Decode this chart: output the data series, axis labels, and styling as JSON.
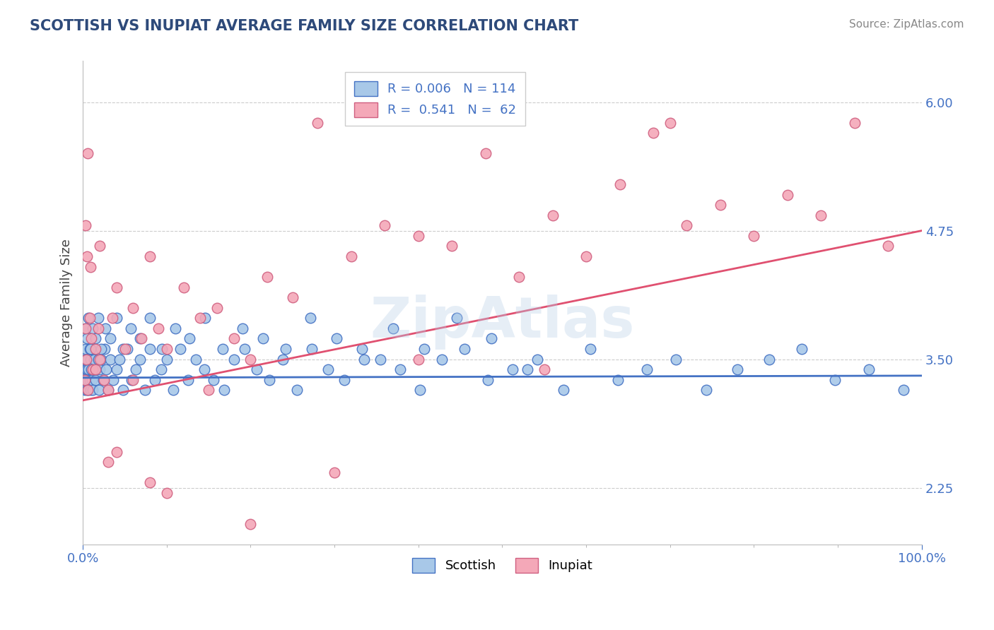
{
  "title": "SCOTTISH VS INUPIAT AVERAGE FAMILY SIZE CORRELATION CHART",
  "source_text": "Source: ZipAtlas.com",
  "ylabel": "Average Family Size",
  "yticks": [
    2.25,
    3.5,
    4.75,
    6.0
  ],
  "xlim": [
    0.0,
    1.0
  ],
  "ylim": [
    1.7,
    6.4
  ],
  "scottish_color": "#a8c8e8",
  "inupiat_color": "#f4a8b8",
  "scottish_line_color": "#4472c4",
  "inupiat_line_color": "#e05070",
  "grid_color": "#cccccc",
  "title_color": "#2e4a7a",
  "axis_color": "#4472c4",
  "watermark_text": "ZipAtlas",
  "scottish_R": 0.006,
  "scottish_N": 114,
  "inupiat_R": 0.541,
  "inupiat_N": 62,
  "scottish_scatter_x": [
    0.001,
    0.002,
    0.002,
    0.003,
    0.003,
    0.004,
    0.004,
    0.005,
    0.005,
    0.006,
    0.006,
    0.007,
    0.007,
    0.008,
    0.008,
    0.009,
    0.009,
    0.01,
    0.011,
    0.012,
    0.013,
    0.014,
    0.015,
    0.016,
    0.018,
    0.019,
    0.02,
    0.022,
    0.024,
    0.026,
    0.028,
    0.03,
    0.033,
    0.036,
    0.04,
    0.044,
    0.048,
    0.053,
    0.058,
    0.063,
    0.068,
    0.074,
    0.08,
    0.086,
    0.093,
    0.1,
    0.108,
    0.116,
    0.125,
    0.135,
    0.145,
    0.156,
    0.168,
    0.18,
    0.193,
    0.207,
    0.222,
    0.238,
    0.255,
    0.273,
    0.292,
    0.312,
    0.333,
    0.355,
    0.378,
    0.402,
    0.428,
    0.455,
    0.483,
    0.512,
    0.542,
    0.573,
    0.605,
    0.638,
    0.672,
    0.707,
    0.743,
    0.78,
    0.818,
    0.857,
    0.897,
    0.937,
    0.978,
    0.003,
    0.005,
    0.007,
    0.009,
    0.012,
    0.015,
    0.018,
    0.022,
    0.027,
    0.033,
    0.04,
    0.048,
    0.057,
    0.068,
    0.08,
    0.094,
    0.11,
    0.127,
    0.146,
    0.167,
    0.19,
    0.215,
    0.242,
    0.271,
    0.302,
    0.335,
    0.37,
    0.407,
    0.446,
    0.487,
    0.53
  ],
  "scottish_scatter_y": [
    3.3,
    3.5,
    3.2,
    3.4,
    3.6,
    3.3,
    3.5,
    3.2,
    3.4,
    3.3,
    3.5,
    3.2,
    3.4,
    3.6,
    3.3,
    3.2,
    3.5,
    3.4,
    3.3,
    3.2,
    3.5,
    3.6,
    3.3,
    3.4,
    3.5,
    3.2,
    3.4,
    3.5,
    3.3,
    3.6,
    3.4,
    3.2,
    3.5,
    3.3,
    3.4,
    3.5,
    3.2,
    3.6,
    3.3,
    3.4,
    3.5,
    3.2,
    3.6,
    3.3,
    3.4,
    3.5,
    3.2,
    3.6,
    3.3,
    3.5,
    3.4,
    3.3,
    3.2,
    3.5,
    3.6,
    3.4,
    3.3,
    3.5,
    3.2,
    3.6,
    3.4,
    3.3,
    3.6,
    3.5,
    3.4,
    3.2,
    3.5,
    3.6,
    3.3,
    3.4,
    3.5,
    3.2,
    3.6,
    3.3,
    3.4,
    3.5,
    3.2,
    3.4,
    3.5,
    3.6,
    3.3,
    3.4,
    3.2,
    3.8,
    3.7,
    3.9,
    3.6,
    3.8,
    3.7,
    3.9,
    3.6,
    3.8,
    3.7,
    3.9,
    3.6,
    3.8,
    3.7,
    3.9,
    3.6,
    3.8,
    3.7,
    3.9,
    3.6,
    3.8,
    3.7,
    3.6,
    3.9,
    3.7,
    3.5,
    3.8,
    3.6,
    3.9,
    3.7,
    3.4
  ],
  "inupiat_scatter_x": [
    0.002,
    0.003,
    0.004,
    0.005,
    0.006,
    0.008,
    0.01,
    0.012,
    0.015,
    0.018,
    0.02,
    0.025,
    0.03,
    0.035,
    0.04,
    0.05,
    0.06,
    0.07,
    0.08,
    0.09,
    0.1,
    0.12,
    0.14,
    0.16,
    0.18,
    0.2,
    0.22,
    0.25,
    0.28,
    0.32,
    0.36,
    0.4,
    0.44,
    0.48,
    0.52,
    0.56,
    0.6,
    0.64,
    0.68,
    0.72,
    0.76,
    0.8,
    0.84,
    0.88,
    0.92,
    0.96,
    0.003,
    0.006,
    0.009,
    0.015,
    0.02,
    0.03,
    0.04,
    0.06,
    0.08,
    0.1,
    0.15,
    0.2,
    0.3,
    0.4,
    0.55,
    0.7
  ],
  "inupiat_scatter_y": [
    3.3,
    3.8,
    3.5,
    4.5,
    3.2,
    3.9,
    3.7,
    3.4,
    3.6,
    3.8,
    3.5,
    3.3,
    3.2,
    3.9,
    4.2,
    3.6,
    3.3,
    3.7,
    4.5,
    3.8,
    3.6,
    4.2,
    3.9,
    4.0,
    3.7,
    3.5,
    4.3,
    4.1,
    5.8,
    4.5,
    4.8,
    4.7,
    4.6,
    5.5,
    4.3,
    4.9,
    4.5,
    5.2,
    5.7,
    4.8,
    5.0,
    4.7,
    5.1,
    4.9,
    5.8,
    4.6,
    4.8,
    5.5,
    4.4,
    3.4,
    4.6,
    2.5,
    2.6,
    4.0,
    2.3,
    2.2,
    3.2,
    1.9,
    2.4,
    3.5,
    3.4,
    5.8
  ],
  "scottish_line_x": [
    0.0,
    1.0
  ],
  "scottish_line_y": [
    3.32,
    3.34
  ],
  "inupiat_line_x": [
    0.0,
    1.0
  ],
  "inupiat_line_y": [
    3.1,
    4.75
  ],
  "background_color": "#ffffff",
  "plot_bg_color": "#ffffff"
}
